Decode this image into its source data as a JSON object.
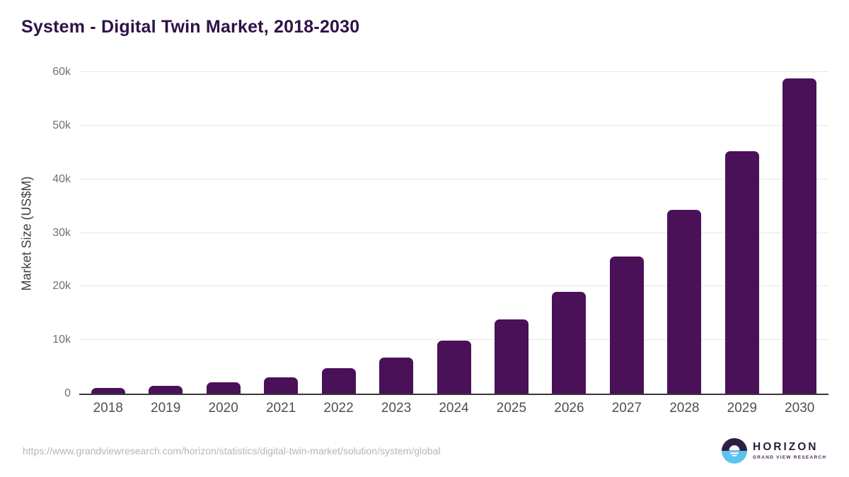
{
  "title": "System - Digital Twin Market, 2018-2030",
  "chart_data": {
    "type": "bar",
    "title": "System - Digital Twin Market, 2018-2030",
    "xlabel": "",
    "ylabel": "Market Size (US$M)",
    "categories": [
      "2018",
      "2019",
      "2020",
      "2021",
      "2022",
      "2023",
      "2024",
      "2025",
      "2026",
      "2027",
      "2028",
      "2029",
      "2030"
    ],
    "values": [
      1050,
      1450,
      2100,
      3000,
      4700,
      6700,
      9850,
      13800,
      18950,
      25650,
      34300,
      45200,
      58800
    ],
    "ylim": [
      0,
      60000
    ],
    "yticks": [
      0,
      10000,
      20000,
      30000,
      40000,
      50000,
      60000
    ],
    "ytick_labels": [
      "0",
      "10k",
      "20k",
      "30k",
      "40k",
      "50k",
      "60k"
    ],
    "grid": true,
    "legend": false,
    "bar_color": "#4a1158"
  },
  "footer": {
    "source_url": "https://www.grandviewresearch.com/horizon/statistics/digital-twin-market/solution/system/global",
    "logo": {
      "title": "HORIZON",
      "subtitle": "GRAND VIEW RESEARCH",
      "icon": "horizon-sun-circle-icon"
    }
  },
  "colors": {
    "title_text": "#2f1147",
    "bar": "#4a1158",
    "gridline": "#e7e7e9",
    "axis_line": "#383838",
    "y_tick_text": "#717171",
    "x_tick_text": "#4f4f4f",
    "url_text": "#b6b6b6",
    "logo_purple": "#2d1f44",
    "logo_blue": "#5ac3ef"
  }
}
